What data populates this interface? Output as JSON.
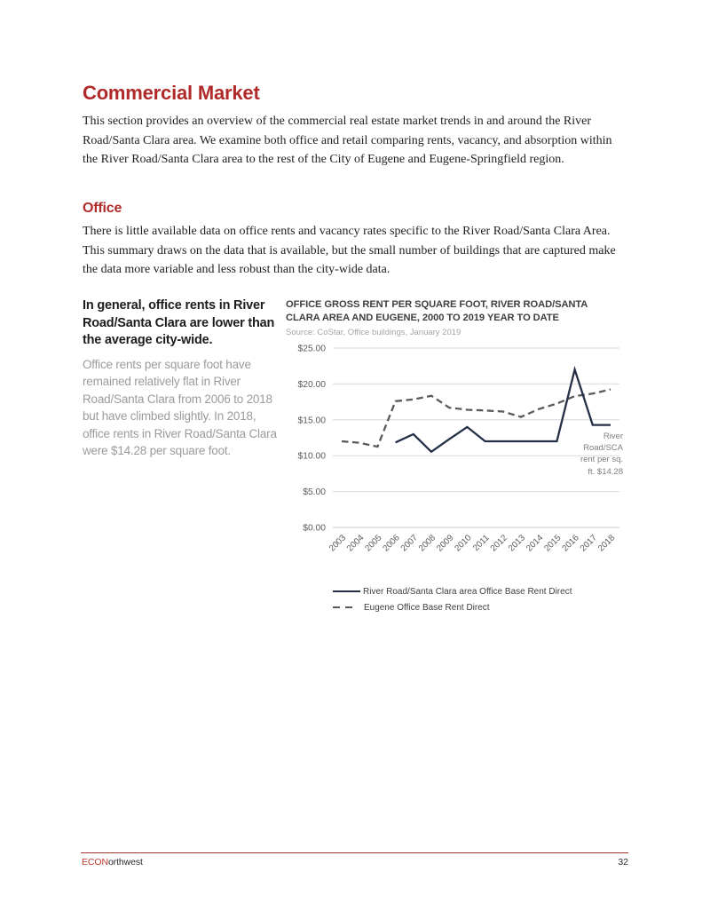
{
  "page": {
    "title": "Commercial Market",
    "intro": "This section provides an overview of the commercial real estate market trends in and around the River Road/Santa Clara area. We examine both office and retail comparing rents, vacancy, and absorption within the River Road/Santa Clara area to the rest of the City of Eugene and Eugene-Springfield region.",
    "office_heading": "Office",
    "office_body": "There is little available data on office rents and vacancy rates specific to the River Road/Santa Clara Area.  This summary draws on the data that is available, but the small number of buildings that are captured make the data more variable and less robust than the city-wide data."
  },
  "callout": {
    "lead": "In general, office rents in River Road/Santa Clara are lower than the average city-wide.",
    "body": "Office rents per square foot have remained relatively flat in River Road/Santa Clara from 2006 to 2018 but have climbed slightly. In 2018, office rents in River Road/Santa Clara were $14.28 per square foot."
  },
  "chart_data": {
    "type": "line",
    "title": "OFFICE GROSS RENT PER SQUARE FOOT, RIVER ROAD/SANTA CLARA AREA AND EUGENE, 2000 TO 2019 YEAR TO DATE",
    "source": "Source: CoStar, Office buildings, January 2019",
    "x": [
      "2003",
      "2004",
      "2005",
      "2006",
      "2007",
      "2008",
      "2009",
      "2010",
      "2011",
      "2012",
      "2013",
      "2014",
      "2015",
      "2016",
      "2017",
      "2018"
    ],
    "series": [
      {
        "name": "River Road/Santa Clara area Office Base Rent Direct",
        "style": "solid",
        "color": "#233047",
        "values": [
          null,
          null,
          null,
          11.85,
          13.0,
          10.55,
          12.3,
          14.0,
          12.0,
          12.0,
          12.0,
          12.0,
          12.0,
          22.0,
          14.28,
          14.28
        ]
      },
      {
        "name": "Eugene Office Base Rent Direct",
        "style": "dashed",
        "color": "#595959",
        "values": [
          12.0,
          11.8,
          11.25,
          17.6,
          17.85,
          18.35,
          16.7,
          16.4,
          16.3,
          16.15,
          15.4,
          16.5,
          17.25,
          18.3,
          18.65,
          19.25
        ]
      }
    ],
    "ylim": [
      0,
      25
    ],
    "yticks": [
      0,
      5,
      10,
      15,
      20,
      25
    ],
    "ytick_labels": [
      "$0.00",
      "$5.00",
      "$10.00",
      "$15.00",
      "$20.00",
      "$25.00"
    ],
    "grid": true,
    "legend_position": "bottom",
    "annotation": "River\nRoad/SCA\nrent per sq.\nft. $14.28",
    "xlabel": "",
    "ylabel": ""
  },
  "colors": {
    "heading_red": "#b02a2a",
    "river_line": "#233047",
    "eugene_line": "#595959",
    "gridline": "#d9d9d9",
    "footer_rule": "#a0342f"
  },
  "footer": {
    "brand_red": "ECON",
    "brand_rest": "orthwest",
    "page_number": "32"
  }
}
